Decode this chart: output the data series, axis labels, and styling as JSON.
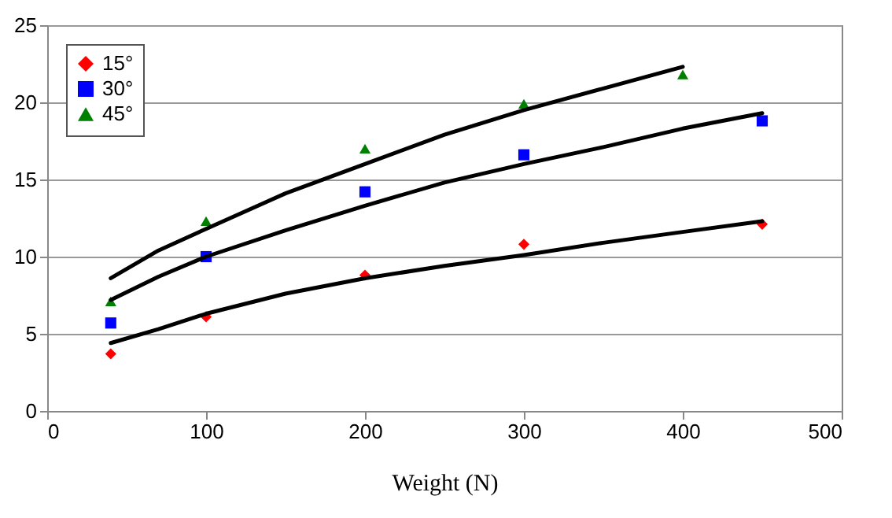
{
  "chart_data": {
    "type": "scatter",
    "xlabel": "Weight (N)",
    "xlim": [
      0,
      500
    ],
    "xticks": [
      0,
      100,
      200,
      300,
      400,
      500
    ],
    "ylim": [
      0,
      25
    ],
    "yticks": [
      0,
      5,
      10,
      15,
      20,
      25
    ],
    "grid": "y",
    "legend": "top left",
    "series": [
      {
        "name": "15°",
        "color": "#ff0000",
        "marker": "diamond",
        "x": [
          40,
          100,
          200,
          300,
          450
        ],
        "values": [
          3.7,
          6.1,
          8.8,
          10.8,
          12.1
        ]
      },
      {
        "name": "30°",
        "color": "#0000ff",
        "marker": "square",
        "x": [
          40,
          100,
          200,
          300,
          450
        ],
        "values": [
          5.7,
          10.0,
          14.2,
          16.6,
          18.8
        ]
      },
      {
        "name": "45°",
        "color": "#008000",
        "marker": "triangle",
        "x": [
          40,
          100,
          200,
          300,
          400
        ],
        "values": [
          7.1,
          12.3,
          17.0,
          19.9,
          21.8
        ]
      },
      {
        "type": "line",
        "color": "#000000",
        "x": [
          40,
          70,
          100,
          150,
          200,
          250,
          300,
          350,
          400,
          450
        ],
        "values": [
          4.4,
          5.3,
          6.3,
          7.6,
          8.6,
          9.4,
          10.1,
          10.9,
          11.6,
          12.3
        ]
      },
      {
        "type": "line",
        "color": "#000000",
        "x": [
          40,
          70,
          100,
          150,
          200,
          250,
          300,
          350,
          400,
          450
        ],
        "values": [
          7.2,
          8.7,
          10.0,
          11.7,
          13.3,
          14.8,
          16.0,
          17.1,
          18.3,
          19.3
        ]
      },
      {
        "type": "line",
        "color": "#000000",
        "x": [
          40,
          70,
          100,
          150,
          200,
          250,
          300,
          350,
          400
        ],
        "values": [
          8.6,
          10.4,
          11.8,
          14.1,
          16.0,
          17.9,
          19.5,
          20.9,
          22.3
        ]
      }
    ]
  }
}
